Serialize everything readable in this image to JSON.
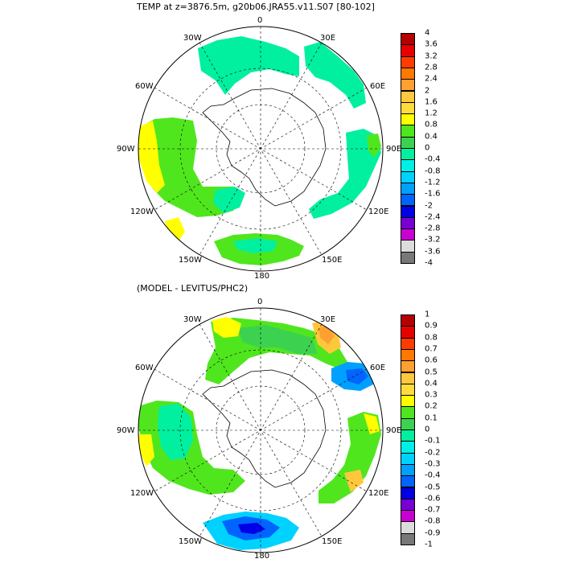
{
  "top_panel": {
    "title": "TEMP at z=3876.5m, g20b06.JRA55.v11.S07 [80-102]",
    "labels": {
      "lon_0": "0",
      "lon_30E": "30E",
      "lon_60E": "60E",
      "lon_90E": "90E",
      "lon_120E": "120E",
      "lon_150E": "150E",
      "lon_180": "180",
      "lon_150W": "150W",
      "lon_120W": "120W",
      "lon_90W": "90W",
      "lon_60W": "60W",
      "lon_30W": "30W"
    },
    "colorbar": {
      "ticks": [
        "4",
        "3.6",
        "3.2",
        "2.8",
        "2.4",
        "2",
        "1.6",
        "1.2",
        "0.8",
        "0.4",
        "0",
        "-0.4",
        "-0.8",
        "-1.2",
        "-1.6",
        "-2",
        "-2.4",
        "-2.8",
        "-3.2",
        "-3.6",
        "-4"
      ],
      "colors": [
        "#b40000",
        "#e60000",
        "#ff3c00",
        "#ff7800",
        "#ffa030",
        "#ffc83c",
        "#ffdc3c",
        "#ffff00",
        "#50e61e",
        "#3cd250",
        "#00f0a0",
        "#00f0e6",
        "#00d2ff",
        "#00a0ff",
        "#0064ff",
        "#0000e6",
        "#7800d2",
        "#c800d2",
        "#dcdcdc",
        "#787878"
      ]
    }
  },
  "bottom_panel": {
    "title": "(MODEL - LEVITUS/PHC2)",
    "labels": {
      "lon_0": "0",
      "lon_30E": "30E",
      "lon_60E": "60E",
      "lon_90E": "90E",
      "lon_120E": "120E",
      "lon_150E": "150E",
      "lon_180": "180",
      "lon_150W": "150W",
      "lon_120W": "120W",
      "lon_90W": "90W",
      "lon_60W": "60W",
      "lon_30W": "30W"
    },
    "colorbar": {
      "ticks": [
        "1",
        "0.9",
        "0.8",
        "0.7",
        "0.6",
        "0.5",
        "0.4",
        "0.3",
        "0.2",
        "0.1",
        "0",
        "-0.1",
        "-0.2",
        "-0.3",
        "-0.4",
        "-0.5",
        "-0.6",
        "-0.7",
        "-0.8",
        "-0.9",
        "-1"
      ],
      "colors": [
        "#b40000",
        "#e60000",
        "#ff3c00",
        "#ff7800",
        "#ffa030",
        "#ffc83c",
        "#ffdc3c",
        "#ffff00",
        "#50e61e",
        "#3cd250",
        "#00f0a0",
        "#00f0e6",
        "#00d2ff",
        "#00a0ff",
        "#0064ff",
        "#0000e6",
        "#7800d2",
        "#c800d2",
        "#dcdcdc",
        "#787878"
      ]
    }
  }
}
